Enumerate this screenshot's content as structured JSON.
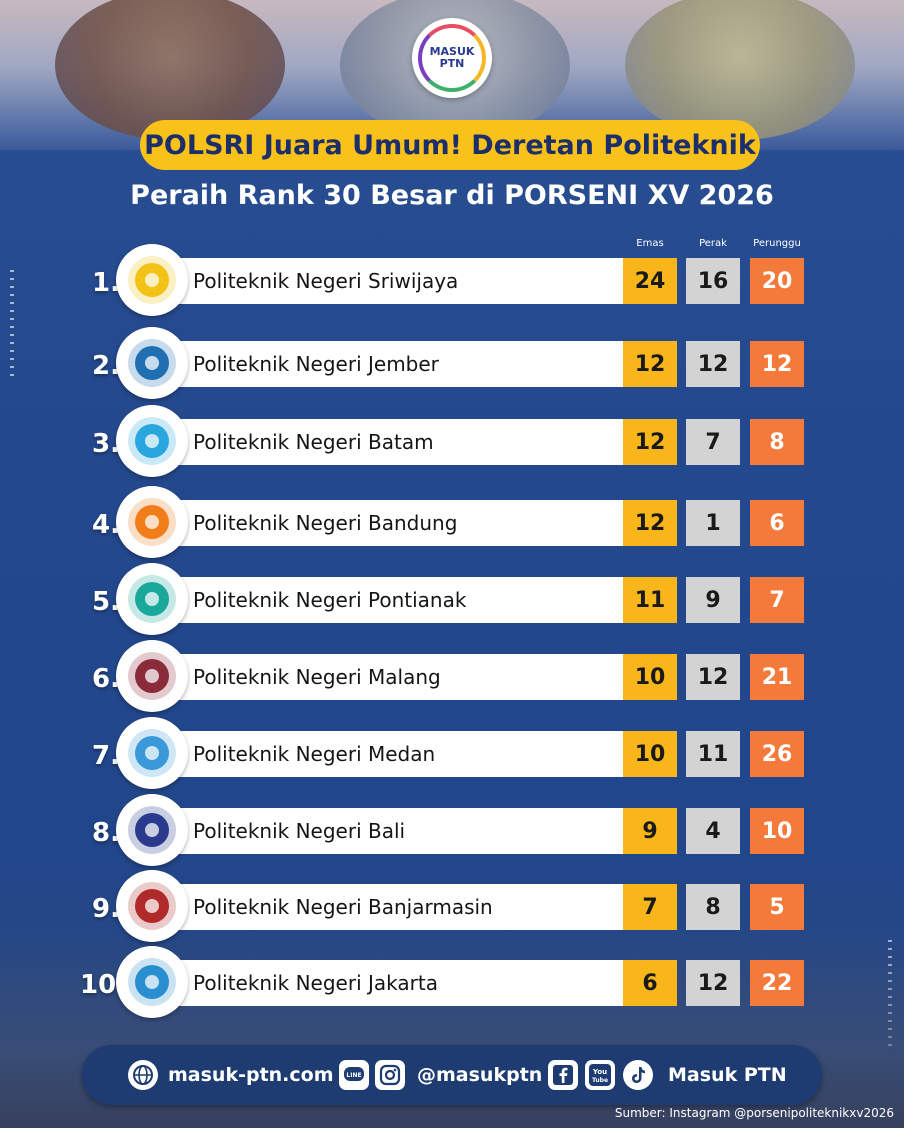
{
  "brand": {
    "logo_line1": "MASUK",
    "logo_line2": "PTN"
  },
  "header": {
    "title": "POLSRI Juara Umum! Deretan Politeknik",
    "subtitle": "Peraih Rank 30 Besar di PORSENI XV 2026"
  },
  "columns": {
    "gold": "Emas",
    "silver": "Perak",
    "bronze": "Perunggu"
  },
  "colors": {
    "gold": "#f9b61b",
    "silver": "#d3d3d3",
    "bronze": "#f47a3c",
    "title_pill": "#f8c21a",
    "background": "#24488d"
  },
  "rankings": [
    {
      "rank": "1.",
      "name": "Politeknik Negeri Sriwijaya",
      "gold": "24",
      "silver": "16",
      "bronze": "20",
      "emblem_color": "#f2c316"
    },
    {
      "rank": "2.",
      "name": "Politeknik Negeri Jember",
      "gold": "12",
      "silver": "12",
      "bronze": "12",
      "emblem_color": "#1f6fb2"
    },
    {
      "rank": "3.",
      "name": "Politeknik Negeri Batam",
      "gold": "12",
      "silver": "7",
      "bronze": "8",
      "emblem_color": "#2aa6df"
    },
    {
      "rank": "4.",
      "name": "Politeknik Negeri Bandung",
      "gold": "12",
      "silver": "1",
      "bronze": "6",
      "emblem_color": "#f07d1a"
    },
    {
      "rank": "5.",
      "name": "Politeknik Negeri Pontianak",
      "gold": "11",
      "silver": "9",
      "bronze": "7",
      "emblem_color": "#1aa89a"
    },
    {
      "rank": "6.",
      "name": "Politeknik Negeri Malang",
      "gold": "10",
      "silver": "12",
      "bronze": "21",
      "emblem_color": "#8a2a3a"
    },
    {
      "rank": "7.",
      "name": "Politeknik Negeri Medan",
      "gold": "10",
      "silver": "11",
      "bronze": "26",
      "emblem_color": "#3a9ad9"
    },
    {
      "rank": "8.",
      "name": "Politeknik Negeri Bali",
      "gold": "9",
      "silver": "4",
      "bronze": "10",
      "emblem_color": "#2a3a8c"
    },
    {
      "rank": "9.",
      "name": "Politeknik Negeri Banjarmasin",
      "gold": "7",
      "silver": "8",
      "bronze": "5",
      "emblem_color": "#b02a2a"
    },
    {
      "rank": "10.",
      "name": "Politeknik Negeri Jakarta",
      "gold": "6",
      "silver": "12",
      "bronze": "22",
      "emblem_color": "#2a8fd0"
    }
  ],
  "footer": {
    "website": "masuk-ptn.com",
    "handle": "@masukptn",
    "name": "Masuk PTN",
    "icons": [
      "globe-icon",
      "line-icon",
      "instagram-icon",
      "facebook-icon",
      "youtube-icon",
      "tiktok-icon"
    ]
  },
  "source": "Sumber: Instagram @porsenipoliteknikxv2026"
}
